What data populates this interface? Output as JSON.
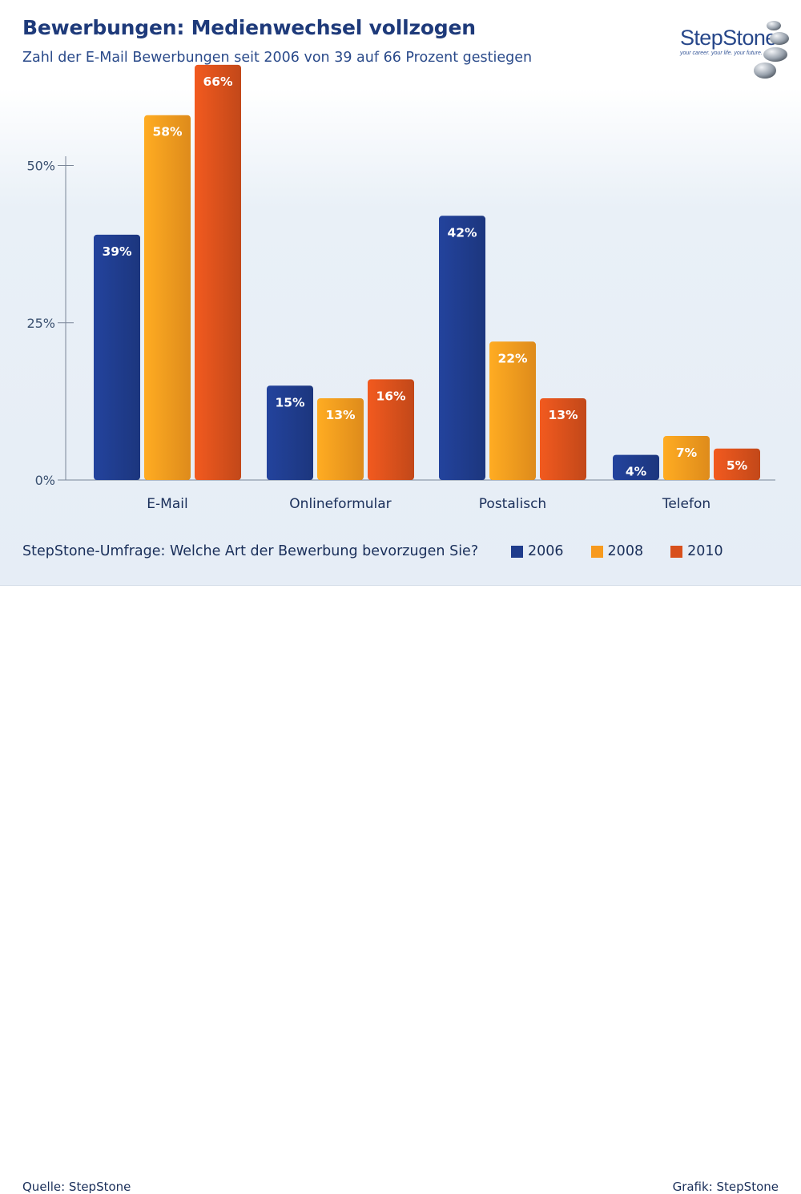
{
  "header": {
    "title": "Bewerbungen: Medienwechsel vollzogen",
    "subtitle": "Zahl der E-Mail Bewerbungen seit 2006 von 39 auf 66 Prozent gestiegen"
  },
  "logo": {
    "wordmark": "StepStone",
    "tagline": "your career. your life. your future.",
    "icon": "stones-logo-icon"
  },
  "question": "StepStone-Umfrage: Welche Art der Bewerbung bevorzugen Sie?",
  "footer": {
    "source": "Quelle: StepStone",
    "credit": "Grafik: StepStone"
  },
  "chart_data": {
    "type": "bar",
    "categories": [
      "E-Mail",
      "Onlineformular",
      "Postalisch",
      "Telefon"
    ],
    "series": [
      {
        "name": "2006",
        "color": "#1f3c8c",
        "values": [
          39,
          15,
          42,
          4
        ]
      },
      {
        "name": "2008",
        "color": "#f79a1e",
        "values": [
          58,
          13,
          22,
          7
        ]
      },
      {
        "name": "2010",
        "color": "#d8501c",
        "values": [
          66,
          16,
          13,
          5
        ]
      }
    ],
    "value_suffix": "%",
    "y_ticks": [
      {
        "value": 0,
        "label": "0%"
      },
      {
        "value": 25,
        "label": "25%"
      },
      {
        "value": 50,
        "label": "50%"
      }
    ],
    "ylim": [
      0,
      75
    ],
    "grid": false,
    "legend_position": "bottom-right"
  }
}
